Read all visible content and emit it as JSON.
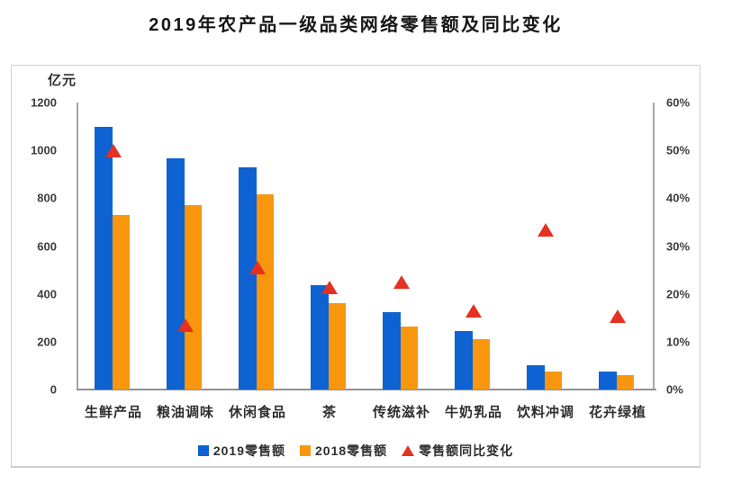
{
  "title": "2019年农产品一级品类网络零售额及同比变化",
  "chart_data": {
    "type": "bar",
    "subtype": "dual-axis combo: grouped bars (left axis) + triangle scatter markers (right axis)",
    "title": "2019年农产品一级品类网络零售额及同比变化",
    "categories": [
      "生鲜产品",
      "粮油调味",
      "休闲食品",
      "茶",
      "传统滋补",
      "牛奶乳品",
      "饮料冲调",
      "花卉绿植"
    ],
    "left_axis": {
      "unit": "亿元",
      "min": 0,
      "max": 1200,
      "tick_step": 200,
      "tick_labels": [
        "1200",
        "1000",
        "800",
        "600",
        "400",
        "200",
        "0"
      ]
    },
    "right_axis": {
      "unit": "%",
      "min": 0,
      "max": 60,
      "tick_step": 10,
      "tick_labels": [
        "60%",
        "50%",
        "40%",
        "30%",
        "20%",
        "10%",
        "0%"
      ]
    },
    "series": [
      {
        "name": "2019零售额",
        "type": "bar",
        "axis": "left",
        "color": "#0E62D1",
        "values": [
          1100,
          965,
          930,
          435,
          325,
          245,
          100,
          75
        ]
      },
      {
        "name": "2018零售额",
        "type": "bar",
        "axis": "left",
        "color": "#F8960D",
        "values": [
          730,
          770,
          815,
          360,
          265,
          210,
          75,
          60
        ]
      },
      {
        "name": "零售额同比变化",
        "type": "scatter",
        "marker": "triangle",
        "axis": "right",
        "color": "#E53122",
        "values": [
          50,
          13.5,
          25.5,
          21.5,
          22.5,
          16.5,
          33.5,
          15.5
        ]
      }
    ],
    "legend_position": "bottom-center",
    "grid": false,
    "axis_line_color": "#a5a5aa",
    "baseline_color": "#8f8f94"
  }
}
